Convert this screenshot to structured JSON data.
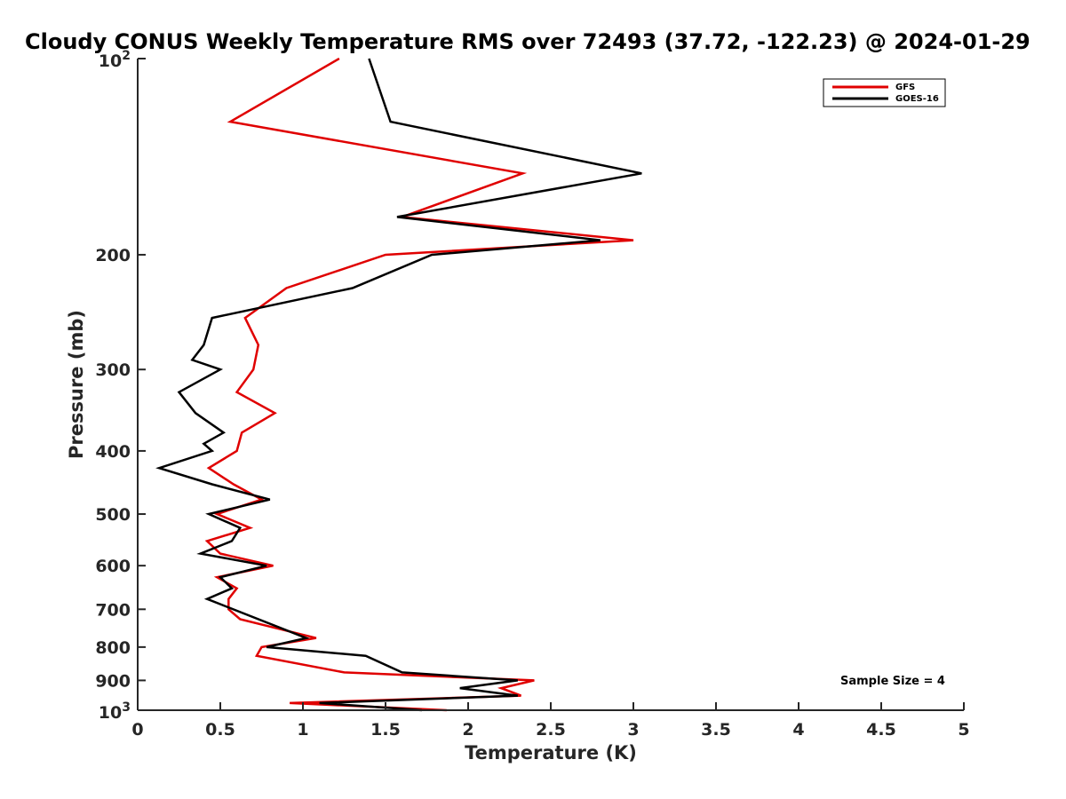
{
  "chart_data": {
    "type": "line",
    "title": "Cloudy CONUS Weekly Temperature RMS over 72493 (37.72, -122.23) @ 2024-01-29",
    "xlabel": "Temperature (K)",
    "ylabel": "Pressure (mb)",
    "xlim": [
      0,
      5
    ],
    "ylim": [
      100,
      1000
    ],
    "y_scale": "log",
    "y_reversed": true,
    "grid": false,
    "legend_placement": "top-right",
    "x_ticks": [
      0,
      0.5,
      1,
      1.5,
      2,
      2.5,
      3,
      3.5,
      4,
      4.5,
      5
    ],
    "x_tick_labels": [
      "0",
      "0.5",
      "1",
      "1.5",
      "2",
      "2.5",
      "3",
      "3.5",
      "4",
      "4.5",
      "5"
    ],
    "y_ticks": [
      100,
      200,
      300,
      400,
      500,
      600,
      700,
      800,
      900,
      1000
    ],
    "y_tick_labels": [
      {
        "base": "10",
        "exp": "2"
      },
      {
        "base": "200"
      },
      {
        "base": "300"
      },
      {
        "base": "400"
      },
      {
        "base": "500"
      },
      {
        "base": "600"
      },
      {
        "base": "700"
      },
      {
        "base": "800"
      },
      {
        "base": "900"
      },
      {
        "base": "10",
        "exp": "3"
      }
    ],
    "series": [
      {
        "name": "GFS",
        "color": "#e00000",
        "points": [
          [
            1.22,
            100
          ],
          [
            0.56,
            125
          ],
          [
            2.33,
            150
          ],
          [
            1.6,
            175
          ],
          [
            3.0,
            190
          ],
          [
            1.5,
            200
          ],
          [
            0.9,
            225
          ],
          [
            0.65,
            250
          ],
          [
            0.73,
            275
          ],
          [
            0.7,
            300
          ],
          [
            0.6,
            325
          ],
          [
            0.83,
            350
          ],
          [
            0.63,
            375
          ],
          [
            0.6,
            400
          ],
          [
            0.43,
            425
          ],
          [
            0.58,
            450
          ],
          [
            0.75,
            475
          ],
          [
            0.48,
            500
          ],
          [
            0.68,
            525
          ],
          [
            0.42,
            550
          ],
          [
            0.5,
            575
          ],
          [
            0.82,
            600
          ],
          [
            0.48,
            625
          ],
          [
            0.6,
            650
          ],
          [
            0.55,
            675
          ],
          [
            0.55,
            700
          ],
          [
            0.62,
            725
          ],
          [
            1.08,
            775
          ],
          [
            0.75,
            800
          ],
          [
            0.72,
            825
          ],
          [
            1.25,
            875
          ],
          [
            2.4,
            900
          ],
          [
            2.2,
            925
          ],
          [
            2.32,
            950
          ],
          [
            0.92,
            975
          ],
          [
            1.87,
            1000
          ]
        ]
      },
      {
        "name": "GOES-16",
        "color": "#000000",
        "points": [
          [
            1.4,
            100
          ],
          [
            1.53,
            125
          ],
          [
            3.05,
            150
          ],
          [
            1.57,
            175
          ],
          [
            2.8,
            190
          ],
          [
            1.78,
            200
          ],
          [
            1.3,
            225
          ],
          [
            0.45,
            250
          ],
          [
            0.4,
            275
          ],
          [
            0.33,
            290
          ],
          [
            0.5,
            300
          ],
          [
            0.25,
            325
          ],
          [
            0.35,
            350
          ],
          [
            0.52,
            375
          ],
          [
            0.4,
            390
          ],
          [
            0.45,
            400
          ],
          [
            0.13,
            425
          ],
          [
            0.45,
            450
          ],
          [
            0.8,
            475
          ],
          [
            0.43,
            500
          ],
          [
            0.62,
            525
          ],
          [
            0.57,
            550
          ],
          [
            0.38,
            575
          ],
          [
            0.78,
            600
          ],
          [
            0.5,
            625
          ],
          [
            0.57,
            650
          ],
          [
            0.42,
            675
          ],
          [
            1.02,
            775
          ],
          [
            0.78,
            800
          ],
          [
            1.38,
            825
          ],
          [
            1.6,
            875
          ],
          [
            2.3,
            900
          ],
          [
            1.95,
            925
          ],
          [
            2.3,
            950
          ],
          [
            1.1,
            975
          ],
          [
            1.72,
            1000
          ]
        ]
      }
    ],
    "annotations": [
      "Sample Size = 4"
    ]
  }
}
